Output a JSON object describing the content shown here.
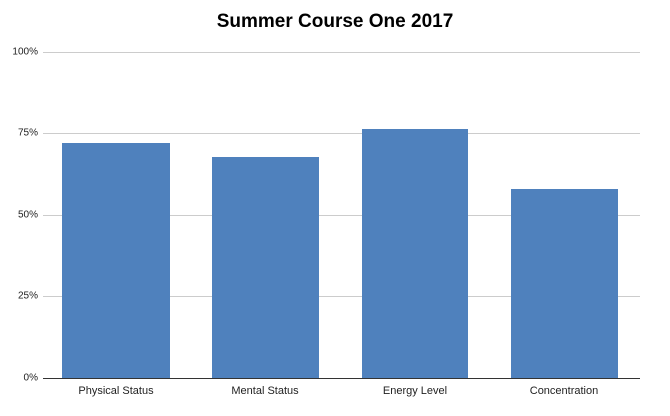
{
  "chart_data": {
    "type": "bar",
    "title": "Summer Course One 2017",
    "xlabel": "",
    "ylabel": "",
    "categories": [
      "Physical Status",
      "Mental Status",
      "Energy Level",
      "Concentration"
    ],
    "values": [
      72,
      67.8,
      76.4,
      58
    ],
    "value_unit": "%",
    "ylim": [
      0,
      100
    ],
    "yticks": [
      "0%",
      "25%",
      "50%",
      "75%",
      "100%"
    ],
    "grid": true,
    "legend": null,
    "bar_color": "#4f81bd"
  }
}
